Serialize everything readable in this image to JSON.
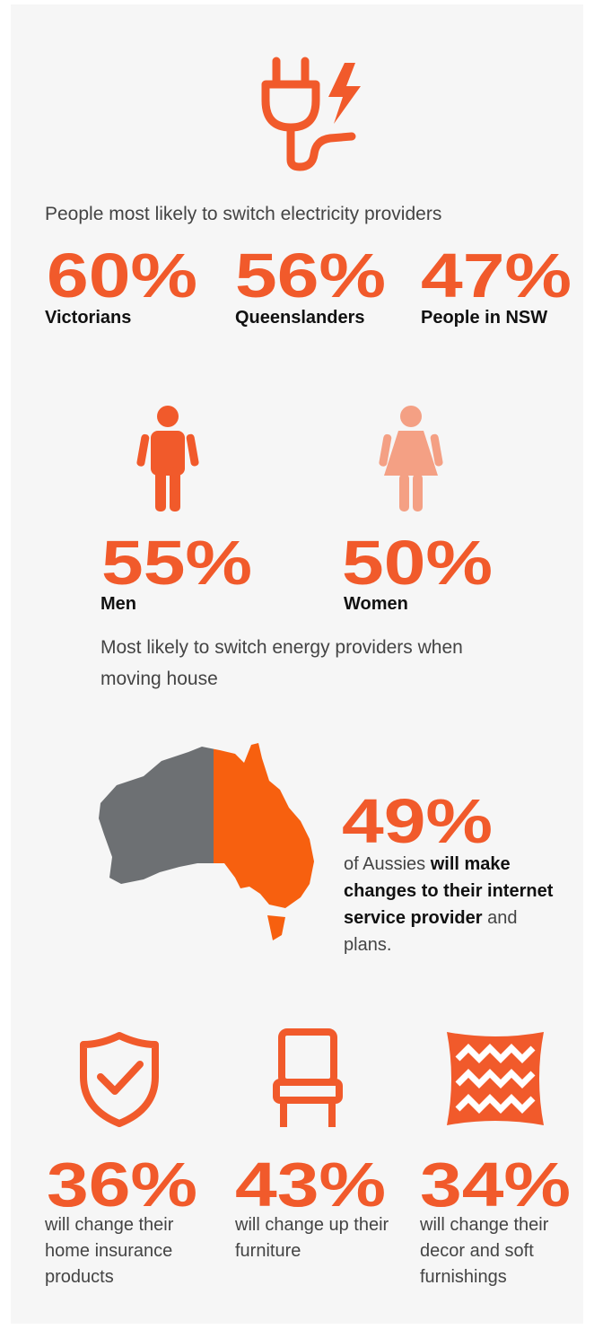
{
  "electricity": {
    "heading": "People most likely to switch electricity providers",
    "stats": [
      {
        "value": "60%",
        "label": "Victorians"
      },
      {
        "value": "56%",
        "label": "Queenslanders"
      },
      {
        "value": "47%",
        "label": "People in NSW"
      }
    ]
  },
  "moving": {
    "stats": [
      {
        "value": "55%",
        "label": "Men"
      },
      {
        "value": "50%",
        "label": "Women"
      }
    ],
    "caption": "Most likely to switch energy providers when moving house"
  },
  "internet": {
    "value": "49%",
    "text": [
      "of Aussies ",
      "will make changes to their internet service provider",
      " and plans."
    ]
  },
  "changes": [
    {
      "value": "36%",
      "text": "will change their home insurance products"
    },
    {
      "value": "43%",
      "text": "will change up their furniture"
    },
    {
      "value": "34%",
      "text": "will change their decor and soft furnishings"
    }
  ]
}
